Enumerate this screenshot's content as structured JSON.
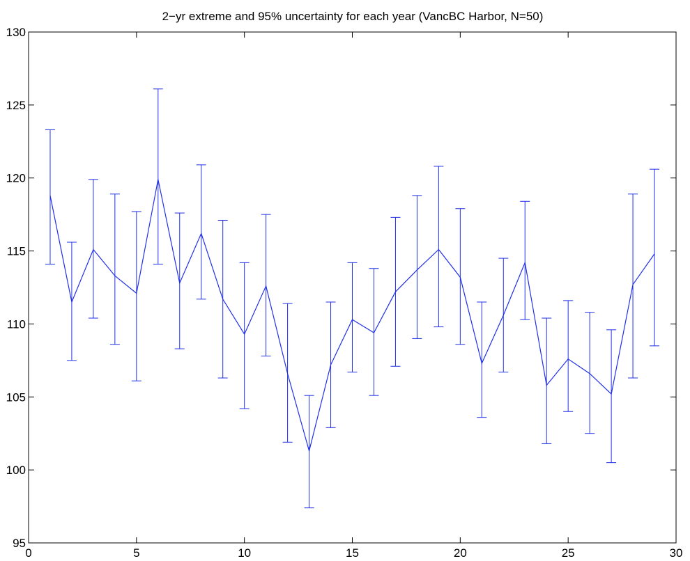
{
  "chart_data": {
    "type": "line",
    "title": "2−yr extreme and 95% uncertainty for each year (VancBC Harbor, N=50)",
    "xlabel": "",
    "ylabel": "",
    "xlim": [
      0,
      30
    ],
    "ylim": [
      95,
      130
    ],
    "xticks": [
      0,
      5,
      10,
      15,
      20,
      25,
      30
    ],
    "yticks": [
      95,
      100,
      105,
      110,
      115,
      120,
      125,
      130
    ],
    "grid": false,
    "line_color": "#1f2fe8",
    "x": [
      1,
      2,
      3,
      4,
      5,
      6,
      7,
      8,
      9,
      10,
      11,
      12,
      13,
      14,
      15,
      16,
      17,
      18,
      19,
      20,
      21,
      22,
      23,
      24,
      25,
      26,
      27,
      28,
      29
    ],
    "y": [
      118.8,
      111.5,
      115.1,
      113.3,
      112.1,
      119.9,
      112.8,
      116.2,
      111.7,
      109.3,
      112.6,
      106.6,
      101.3,
      107.2,
      110.3,
      109.4,
      112.2,
      113.7,
      115.1,
      113.2,
      107.3,
      110.6,
      114.2,
      105.8,
      107.6,
      106.6,
      105.2,
      112.7,
      114.8
    ],
    "lower": [
      114.1,
      107.5,
      110.4,
      108.6,
      106.1,
      114.1,
      108.3,
      111.7,
      106.3,
      104.2,
      107.8,
      101.9,
      97.4,
      102.9,
      106.7,
      105.1,
      107.1,
      109.0,
      109.8,
      108.6,
      103.6,
      106.7,
      110.3,
      101.8,
      104.0,
      102.5,
      100.5,
      106.3,
      108.5
    ],
    "upper": [
      123.3,
      115.6,
      119.9,
      118.9,
      117.7,
      126.1,
      117.6,
      120.9,
      117.1,
      114.2,
      117.5,
      111.4,
      105.1,
      111.5,
      114.2,
      113.8,
      117.3,
      118.8,
      120.8,
      117.9,
      111.5,
      114.5,
      118.4,
      110.4,
      111.6,
      110.8,
      109.6,
      118.9,
      120.6
    ]
  }
}
